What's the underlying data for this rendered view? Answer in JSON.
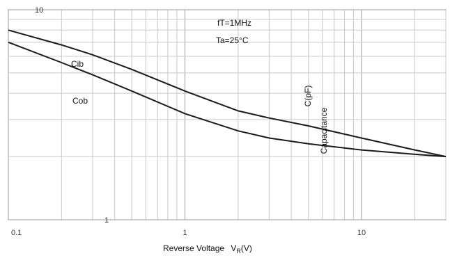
{
  "chart_data": {
    "type": "line",
    "title": "",
    "xlabel": "Reverse Voltage",
    "xlabel_symbol": "V",
    "xlabel_sub": "R",
    "xlabel_unit": "(V)",
    "ylabel": "Capacitance",
    "ylabel_unit": "C(pF)",
    "x_scale": "log",
    "y_scale": "log",
    "xlim": [
      0.1,
      30
    ],
    "ylim": [
      1,
      10
    ],
    "x_ticks": [
      "0.1",
      "1",
      "10"
    ],
    "x_tick_values": [
      0.1,
      1,
      10
    ],
    "y_ticks": [
      "10",
      "1"
    ],
    "y_tick_values": [
      10,
      1
    ],
    "grid": true,
    "annotations": [
      "fT=1MHz",
      "Ta=25°C"
    ],
    "series": [
      {
        "name": "Cib",
        "x": [
          0.1,
          0.2,
          0.3,
          0.5,
          1.0,
          2.0,
          3.0,
          5.0,
          10.0,
          20.0,
          30.0
        ],
        "y": [
          8.0,
          6.8,
          6.1,
          5.2,
          4.1,
          3.3,
          3.05,
          2.8,
          2.45,
          2.15,
          2.0
        ]
      },
      {
        "name": "Cob",
        "x": [
          0.1,
          0.2,
          0.3,
          0.5,
          1.0,
          2.0,
          3.0,
          5.0,
          10.0,
          20.0,
          30.0
        ],
        "y": [
          7.0,
          5.6,
          4.9,
          4.1,
          3.2,
          2.65,
          2.45,
          2.3,
          2.15,
          2.05,
          2.0
        ]
      }
    ]
  }
}
